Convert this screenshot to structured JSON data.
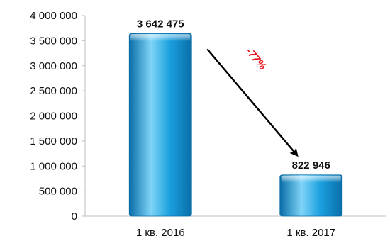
{
  "chart_data": {
    "type": "bar",
    "categories": [
      "1 кв. 2016",
      "1 кв. 2017"
    ],
    "values": [
      3642475,
      822946
    ],
    "data_labels": [
      "3 642 475",
      "822 946"
    ],
    "title": "",
    "xlabel": "",
    "ylabel": "",
    "ylim": [
      0,
      4000000
    ],
    "yticks": [
      0,
      500000,
      1000000,
      1500000,
      2000000,
      2500000,
      3000000,
      3500000,
      4000000
    ],
    "ytick_labels": [
      "0",
      "500 000",
      "1 000 000",
      "1 500 000",
      "2 000 000",
      "2 500 000",
      "3 000 000",
      "3 500 000",
      "4 000 000"
    ],
    "grid": false,
    "legend": "none",
    "annotation": {
      "text": "-77%",
      "from_category": "1 кв. 2016",
      "to_category": "1 кв. 2017",
      "color": "#e8141c"
    },
    "bar_color": "#1aa0de",
    "bar_color_light": "#7fd4f7",
    "bar_color_dark": "#0a6ea8"
  }
}
